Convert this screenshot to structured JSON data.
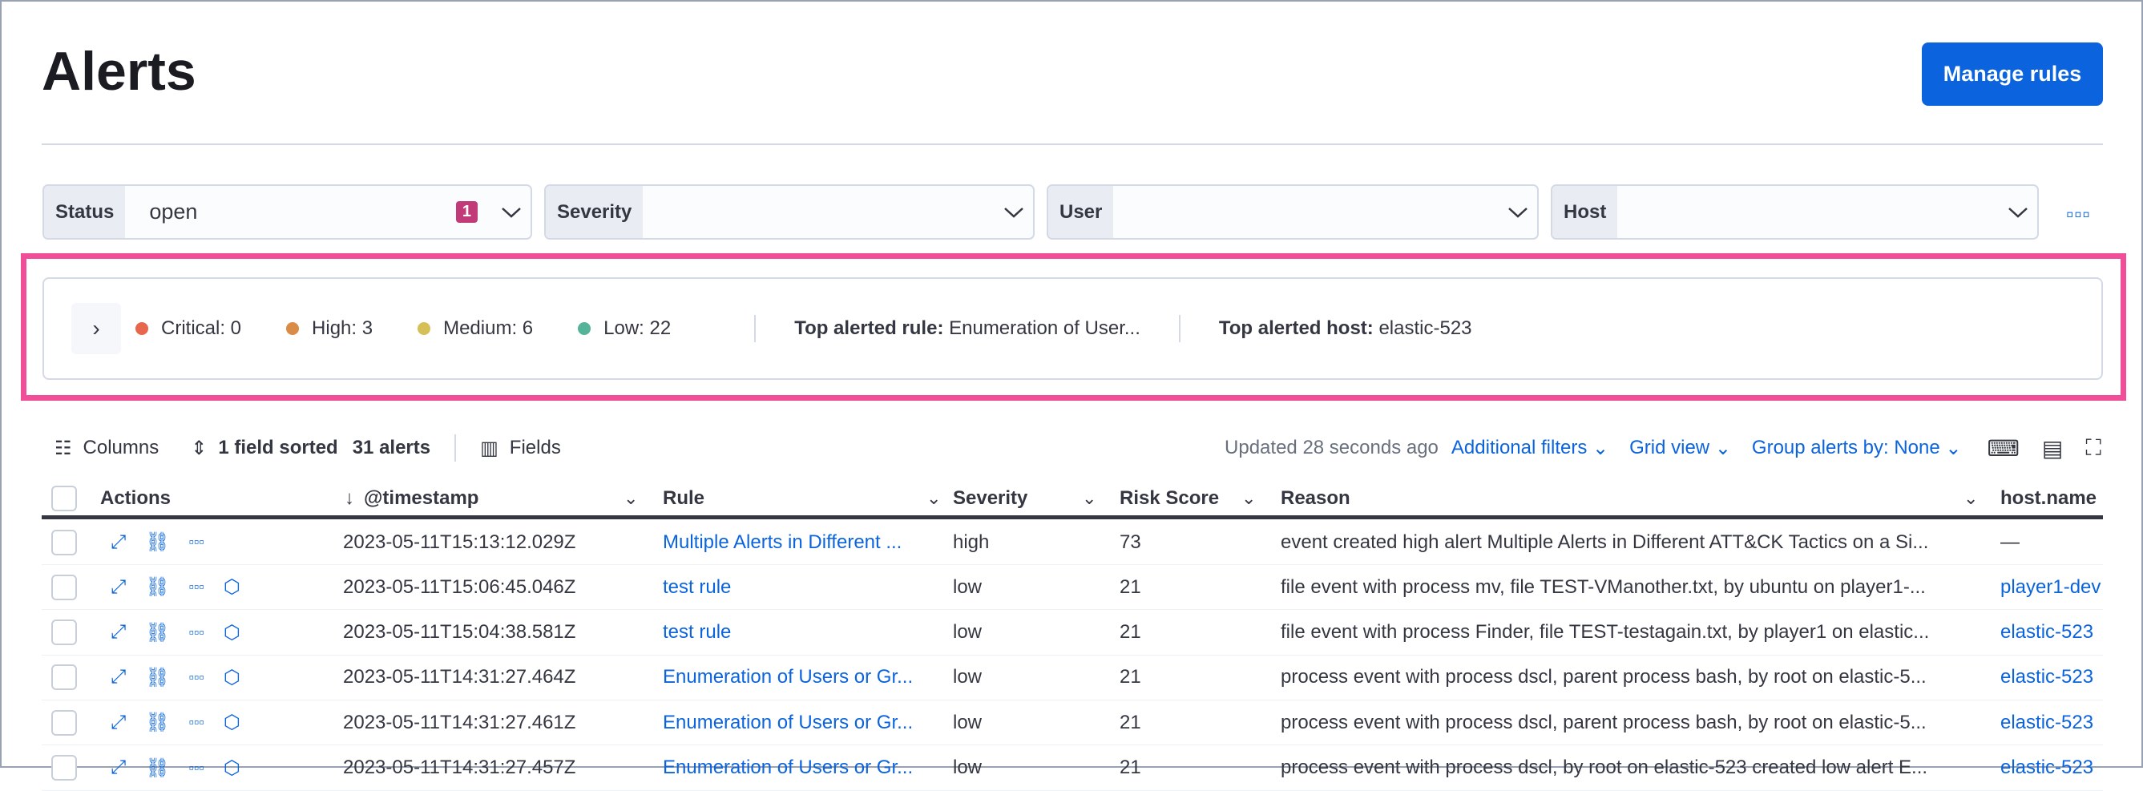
{
  "page": {
    "title": "Alerts",
    "manage_rules": "Manage rules"
  },
  "filters": [
    {
      "label": "Status",
      "value": "open",
      "badge": "1"
    },
    {
      "label": "Severity",
      "value": ""
    },
    {
      "label": "User",
      "value": ""
    },
    {
      "label": "Host",
      "value": ""
    }
  ],
  "summary": {
    "severities": [
      {
        "label": "Critical: 0",
        "color": "#e7664c"
      },
      {
        "label": "High: 3",
        "color": "#da8b45"
      },
      {
        "label": "Medium: 6",
        "color": "#d6bf57"
      },
      {
        "label": "Low: 22",
        "color": "#54b399"
      }
    ],
    "top_rule_label": "Top alerted rule:",
    "top_rule_value": "Enumeration of User...",
    "top_host_label": "Top alerted host:",
    "top_host_value": "elastic-523"
  },
  "toolbar": {
    "columns": "Columns",
    "sorted": "1 field sorted",
    "count": "31 alerts",
    "fields": "Fields",
    "updated": "Updated 28 seconds ago",
    "additional_filters": "Additional filters",
    "grid_view": "Grid view",
    "group_by": "Group alerts by: None"
  },
  "table": {
    "headers": {
      "actions": "Actions",
      "timestamp": "@timestamp",
      "rule": "Rule",
      "severity": "Severity",
      "risk": "Risk Score",
      "reason": "Reason",
      "host": "host.name"
    },
    "rows": [
      {
        "timestamp": "2023-05-11T15:13:12.029Z",
        "rule": "Multiple Alerts in Different ...",
        "severity": "high",
        "risk": "73",
        "reason": "event created high alert Multiple Alerts in Different ATT&CK Tactics on a Si...",
        "host": "—"
      },
      {
        "timestamp": "2023-05-11T15:06:45.046Z",
        "rule": "test rule",
        "severity": "low",
        "risk": "21",
        "reason": "file event with process mv, file TEST-VManother.txt, by ubuntu on player1-...",
        "host": "player1-dev"
      },
      {
        "timestamp": "2023-05-11T15:04:38.581Z",
        "rule": "test rule",
        "severity": "low",
        "risk": "21",
        "reason": "file event with process Finder, file TEST-testagain.txt, by player1 on elastic...",
        "host": "elastic-523"
      },
      {
        "timestamp": "2023-05-11T14:31:27.464Z",
        "rule": "Enumeration of Users or Gr...",
        "severity": "low",
        "risk": "21",
        "reason": "process event with process dscl, parent process bash, by root on elastic-5...",
        "host": "elastic-523"
      },
      {
        "timestamp": "2023-05-11T14:31:27.461Z",
        "rule": "Enumeration of Users or Gr...",
        "severity": "low",
        "risk": "21",
        "reason": "process event with process dscl, parent process bash, by root on elastic-5...",
        "host": "elastic-523"
      },
      {
        "timestamp": "2023-05-11T14:31:27.457Z",
        "rule": "Enumeration of Users or Gr...",
        "severity": "low",
        "risk": "21",
        "reason": "process event with process dscl, by root on elastic-523 created low alert E...",
        "host": "elastic-523"
      }
    ]
  }
}
